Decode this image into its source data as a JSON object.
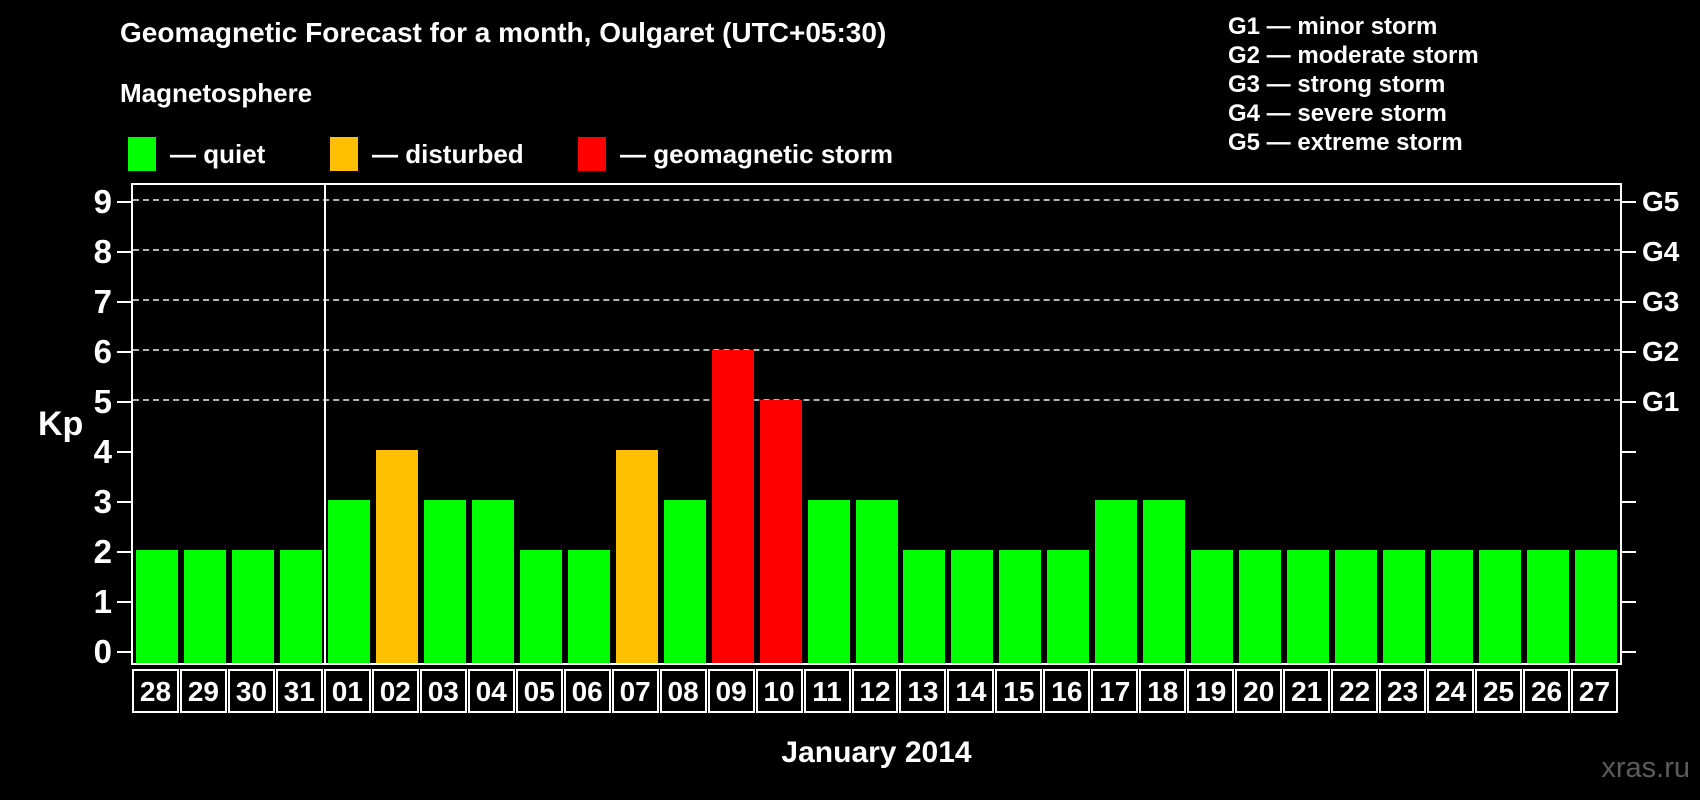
{
  "title": "Geomagnetic Forecast for a month, Oulgaret (UTC+05:30)",
  "subtitle": "Magnetosphere",
  "legend": {
    "items": [
      {
        "key": "quiet",
        "label": "— quiet"
      },
      {
        "key": "disturbed",
        "label": "— disturbed"
      },
      {
        "key": "storm",
        "label": "— geomagnetic storm"
      }
    ]
  },
  "storm_scale_legend": {
    "items": [
      "G1 — minor storm",
      "G2 — moderate storm",
      "G3 — strong storm",
      "G4 — severe storm",
      "G5 — extreme storm"
    ]
  },
  "colors": {
    "quiet": "#00ff00",
    "disturbed": "#ffc000",
    "storm": "#ff0000",
    "axis": "#ffffff",
    "gridline": "#b3b3b3",
    "watermark": "#5c5c5c",
    "background": "#000000"
  },
  "chart_data": {
    "type": "bar",
    "title": "Geomagnetic Forecast for a month, Oulgaret (UTC+05:30)",
    "xlabel": "January 2014",
    "ylabel": "Kp",
    "ylim": [
      0,
      9
    ],
    "y_ticks": [
      "0",
      "1",
      "2",
      "3",
      "4",
      "5",
      "6",
      "7",
      "8",
      "9"
    ],
    "right_axis_labels": [
      {
        "kp": 5,
        "label": "G1"
      },
      {
        "kp": 6,
        "label": "G2"
      },
      {
        "kp": 7,
        "label": "G3"
      },
      {
        "kp": 8,
        "label": "G4"
      },
      {
        "kp": 9,
        "label": "G5"
      }
    ],
    "gridlines_at_kp": [
      5,
      6,
      7,
      8,
      9
    ],
    "grid": "dashed horizontal lines at storm levels only",
    "legend_position": "top-left",
    "categories": [
      "28",
      "29",
      "30",
      "31",
      "01",
      "02",
      "03",
      "04",
      "05",
      "06",
      "07",
      "08",
      "09",
      "10",
      "11",
      "12",
      "13",
      "14",
      "15",
      "16",
      "17",
      "18",
      "19",
      "20",
      "21",
      "22",
      "23",
      "24",
      "25",
      "26",
      "27"
    ],
    "values": [
      2,
      2,
      2,
      2,
      3,
      4,
      3,
      3,
      2,
      2,
      4,
      3,
      6,
      5,
      3,
      3,
      2,
      2,
      2,
      2,
      3,
      3,
      2,
      2,
      2,
      2,
      2,
      2,
      2,
      2,
      2
    ],
    "state_rules": {
      "disturbed_min_kp": 4,
      "storm_min_kp": 5
    },
    "month_boundary_after_index": 3
  },
  "footer": {
    "watermark": "xras.ru"
  }
}
